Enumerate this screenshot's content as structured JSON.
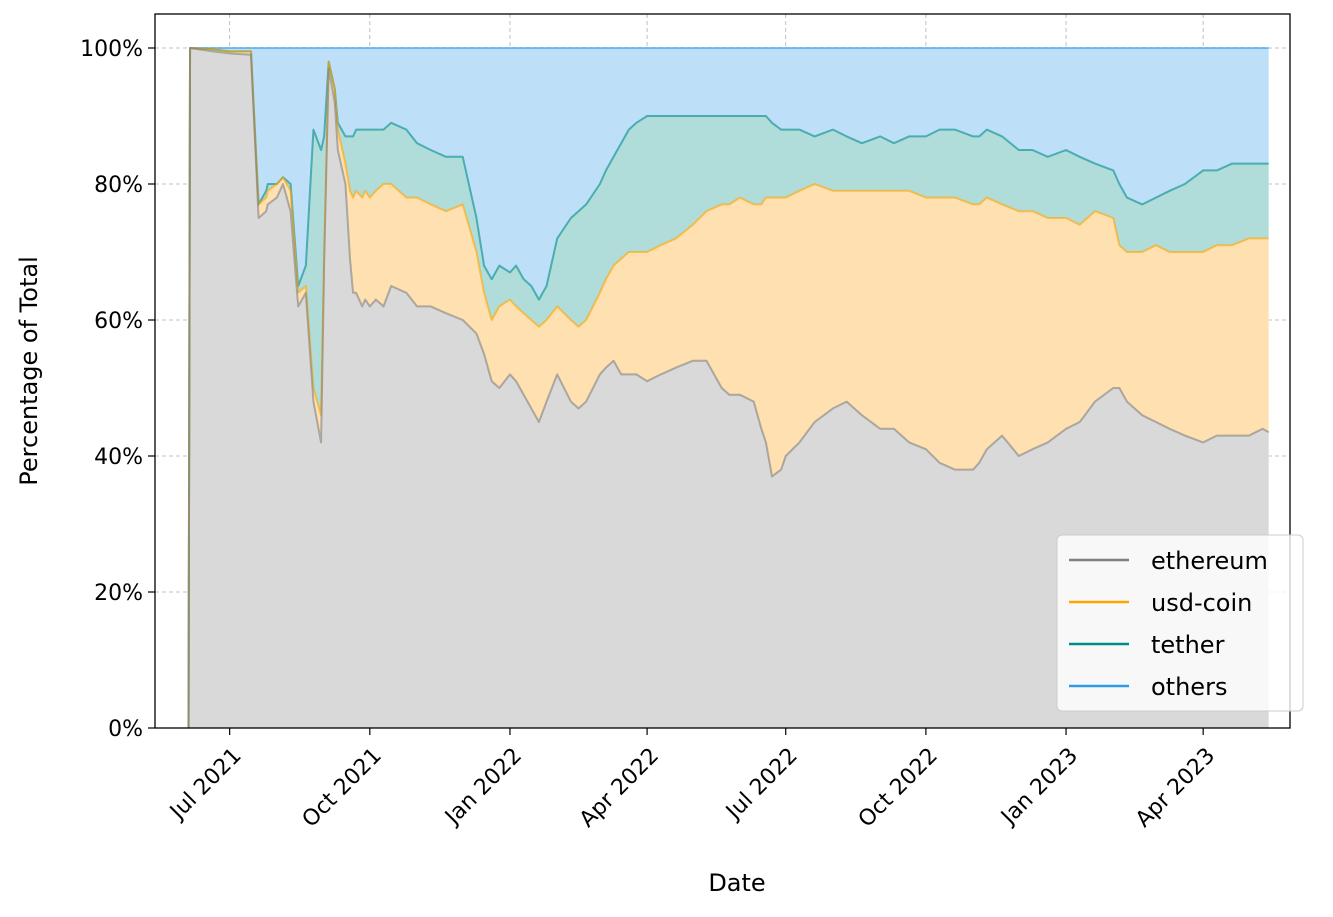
{
  "chart_data": {
    "type": "area",
    "stacked": true,
    "normalized": true,
    "title": "",
    "xlabel": "Date",
    "ylabel": "Percentage of Total",
    "x_ticks": [
      "Jul 2021",
      "Oct 2021",
      "Jan 2022",
      "Apr 2022",
      "Jul 2022",
      "Oct 2022",
      "Jan 2023",
      "Apr 2023"
    ],
    "x_tick_dates": [
      "2021-07-01",
      "2021-10-01",
      "2022-01-01",
      "2022-04-01",
      "2022-07-01",
      "2022-10-01",
      "2023-01-01",
      "2023-04-01"
    ],
    "y_ticks": [
      "0%",
      "20%",
      "40%",
      "60%",
      "80%",
      "100%"
    ],
    "y_tick_values": [
      0,
      20,
      40,
      60,
      80,
      100
    ],
    "xlim": [
      "2021-05-13",
      "2023-05-28"
    ],
    "ylim": [
      0,
      105
    ],
    "grid": true,
    "legend_position": "bottom-right",
    "series_colors": {
      "ethereum": "#808080",
      "usd-coin": "#ffa500",
      "tether": "#008b8b",
      "others": "#2e9be6"
    },
    "area_fill_colors": {
      "ethereum": "#d9d9d9",
      "usd-coin": "#ffe0b0",
      "tether": "#b0ddda",
      "others": "#bde0f8"
    },
    "legend": [
      "ethereum",
      "usd-coin",
      "tether",
      "others"
    ],
    "dates": [
      "2021-06-04",
      "2021-06-05",
      "2021-06-20",
      "2021-07-01",
      "2021-07-15",
      "2021-07-20",
      "2021-07-25",
      "2021-07-26",
      "2021-08-01",
      "2021-08-05",
      "2021-08-10",
      "2021-08-15",
      "2021-08-20",
      "2021-08-25",
      "2021-08-30",
      "2021-09-01",
      "2021-09-04",
      "2021-09-08",
      "2021-09-10",
      "2021-09-15",
      "2021-09-18",
      "2021-09-20",
      "2021-09-22",
      "2021-09-26",
      "2021-09-28",
      "2021-10-01",
      "2021-10-05",
      "2021-10-10",
      "2021-10-15",
      "2021-10-25",
      "2021-11-01",
      "2021-11-10",
      "2021-11-20",
      "2021-12-01",
      "2021-12-10",
      "2021-12-15",
      "2021-12-20",
      "2021-12-25",
      "2022-01-01",
      "2022-01-05",
      "2022-01-10",
      "2022-01-15",
      "2022-01-20",
      "2022-01-25",
      "2022-02-01",
      "2022-02-10",
      "2022-02-15",
      "2022-02-20",
      "2022-03-01",
      "2022-03-05",
      "2022-03-10",
      "2022-03-15",
      "2022-03-20",
      "2022-03-25",
      "2022-04-01",
      "2022-04-10",
      "2022-04-20",
      "2022-05-01",
      "2022-05-10",
      "2022-05-20",
      "2022-05-25",
      "2022-06-01",
      "2022-06-10",
      "2022-06-15",
      "2022-06-18",
      "2022-06-22",
      "2022-06-28",
      "2022-07-01",
      "2022-07-10",
      "2022-07-20",
      "2022-08-01",
      "2022-08-10",
      "2022-08-20",
      "2022-09-01",
      "2022-09-10",
      "2022-09-20",
      "2022-10-01",
      "2022-10-10",
      "2022-10-20",
      "2022-11-01",
      "2022-11-05",
      "2022-11-10",
      "2022-11-20",
      "2022-12-01",
      "2022-12-10",
      "2022-12-20",
      "2023-01-01",
      "2023-01-10",
      "2023-01-20",
      "2023-02-01",
      "2023-02-05",
      "2023-02-10",
      "2023-02-20",
      "2023-03-01",
      "2023-03-10",
      "2023-03-20",
      "2023-04-01",
      "2023-04-10",
      "2023-04-20",
      "2023-05-01",
      "2023-05-10",
      "2023-05-14"
    ],
    "series": [
      {
        "name": "ethereum",
        "cumulative_percent": [
          0,
          100,
          99.5,
          99.2,
          99,
          75,
          76,
          77,
          78,
          80,
          76,
          62,
          64,
          48,
          42,
          68,
          97,
          92,
          85,
          80,
          69,
          64,
          64,
          62,
          63,
          62,
          63,
          62,
          65,
          64,
          62,
          62,
          61,
          60,
          58,
          55,
          51,
          50,
          52,
          51,
          49,
          47,
          45,
          48,
          52,
          48,
          47,
          48,
          52,
          53,
          54,
          52,
          52,
          52,
          51,
          52,
          53,
          54,
          54,
          50,
          49,
          49,
          48,
          44,
          42,
          37,
          38,
          40,
          42,
          45,
          47,
          48,
          46,
          44,
          44,
          42,
          41,
          39,
          38,
          38,
          39,
          41,
          43,
          40,
          41,
          42,
          44,
          45,
          48,
          50,
          50,
          48,
          46,
          45,
          44,
          43,
          42,
          43,
          43,
          43,
          44,
          43.5
        ]
      },
      {
        "name": "usd-coin",
        "cumulative_percent": [
          0,
          100,
          99.8,
          99.5,
          99.5,
          77,
          78,
          79,
          80,
          81,
          79,
          64,
          65,
          50,
          46,
          70,
          98,
          94,
          88,
          83,
          79,
          78,
          79,
          78,
          79,
          78,
          79,
          80,
          80,
          78,
          78,
          77,
          76,
          77,
          70,
          64,
          60,
          62,
          63,
          62,
          61,
          60,
          59,
          60,
          62,
          60,
          59,
          60,
          64,
          66,
          68,
          69,
          70,
          70,
          70,
          71,
          72,
          74,
          76,
          77,
          77,
          78,
          77,
          77,
          78,
          78,
          78,
          78,
          79,
          80,
          79,
          79,
          79,
          79,
          79,
          79,
          78,
          78,
          78,
          77,
          77,
          78,
          77,
          76,
          76,
          75,
          75,
          74,
          76,
          75,
          71,
          70,
          70,
          71,
          70,
          70,
          70,
          71,
          71,
          72,
          72,
          72
        ]
      },
      {
        "name": "tether",
        "cumulative_percent": [
          0,
          100,
          99.8,
          99.5,
          99.5,
          77,
          79,
          80,
          80,
          81,
          80,
          65,
          68,
          88,
          85,
          87,
          98,
          94,
          89,
          87,
          87,
          87,
          88,
          88,
          88,
          88,
          88,
          88,
          89,
          88,
          86,
          85,
          84,
          84,
          75,
          68,
          66,
          68,
          67,
          68,
          66,
          65,
          63,
          65,
          72,
          75,
          76,
          77,
          80,
          82,
          84,
          86,
          88,
          89,
          90,
          90,
          90,
          90,
          90,
          90,
          90,
          90,
          90,
          90,
          90,
          89,
          88,
          88,
          88,
          87,
          88,
          87,
          86,
          87,
          86,
          87,
          87,
          88,
          88,
          87,
          87,
          88,
          87,
          85,
          85,
          84,
          85,
          84,
          83,
          82,
          80,
          78,
          77,
          78,
          79,
          80,
          82,
          82,
          83,
          83,
          83,
          83
        ]
      },
      {
        "name": "others",
        "cumulative_percent": [
          0,
          100,
          100,
          100,
          100,
          100,
          100,
          100,
          100,
          100,
          100,
          100,
          100,
          100,
          100,
          100,
          100,
          100,
          100,
          100,
          100,
          100,
          100,
          100,
          100,
          100,
          100,
          100,
          100,
          100,
          100,
          100,
          100,
          100,
          100,
          100,
          100,
          100,
          100,
          100,
          100,
          100,
          100,
          100,
          100,
          100,
          100,
          100,
          100,
          100,
          100,
          100,
          100,
          100,
          100,
          100,
          100,
          100,
          100,
          100,
          100,
          100,
          100,
          100,
          100,
          100,
          100,
          100,
          100,
          100,
          100,
          100,
          100,
          100,
          100,
          100,
          100,
          100,
          100,
          100,
          100,
          100,
          100,
          100,
          100,
          100,
          100,
          100,
          100,
          100,
          100,
          100,
          100,
          100,
          100,
          100,
          100,
          100,
          100,
          100,
          100,
          100
        ]
      }
    ]
  }
}
